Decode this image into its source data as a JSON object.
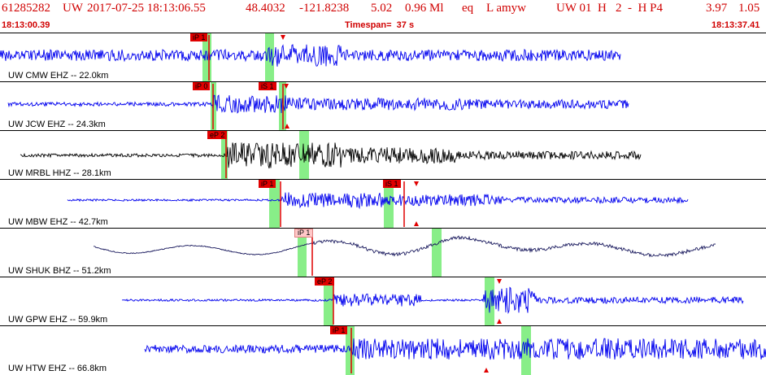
{
  "header": {
    "event_id": "61285282",
    "network": "UW",
    "datetime": "2017-07-25 18:13:06.55",
    "lat": "48.4032",
    "lon": "-121.8238",
    "depth": "5.02",
    "magnitude": "0.96 Ml",
    "event_type": "eq",
    "flags": "L amyw",
    "source_info": "UW 01  H   2  -  H P4",
    "extra1": "3.97",
    "extra2": "1.05",
    "start_time": "18:13:00.39",
    "timespan": "Timespan=  37 s",
    "end_time": "18:13:37.41"
  },
  "colors": {
    "blue": "#0000ee",
    "black": "#000000",
    "navy": "#1a1a5e",
    "pick_red": "#e00000",
    "green_window": "#88ee88",
    "header_red": "#d00000"
  },
  "traces": [
    {
      "label": "UW CMW EHZ -- 22.0km",
      "color": "blue",
      "picks": [
        "iP 1"
      ]
    },
    {
      "label": "UW JCW EHZ -- 24.3km",
      "color": "blue",
      "picks": [
        "iP 0",
        "iS 1"
      ]
    },
    {
      "label": "UW MRBL HHZ -- 28.1km",
      "color": "black",
      "picks": [
        "eP 2"
      ]
    },
    {
      "label": "UW MBW EHZ -- 42.7km",
      "color": "blue",
      "picks": [
        "iP 1",
        "iS 1"
      ]
    },
    {
      "label": "UW SHUK BHZ -- 51.2km",
      "color": "navy",
      "picks": [
        "iP 1"
      ]
    },
    {
      "label": "UW GPW EHZ -- 59.9km",
      "color": "blue",
      "picks": [
        "eP 2"
      ]
    },
    {
      "label": "UW HTW EHZ -- 66.8km",
      "color": "blue",
      "picks": [
        "iP 1"
      ]
    }
  ]
}
